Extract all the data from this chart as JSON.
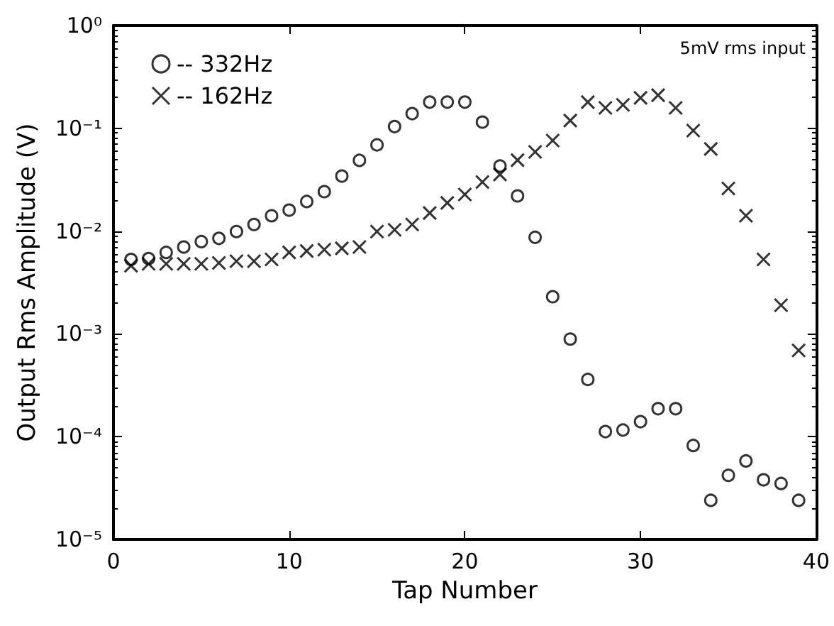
{
  "chart_data": {
    "type": "scatter",
    "xlabel": "Tap Number",
    "ylabel": "Output Rms Amplitude (V)",
    "log": "y",
    "grid": false,
    "legend": "top left",
    "xlim": [
      0,
      40
    ],
    "xticks": [
      0,
      10,
      20,
      30,
      40
    ],
    "ylim": [
      1e-05,
      1
    ],
    "yticks": [
      {
        "value": 1e-05,
        "label": "10⁻⁵"
      },
      {
        "value": 0.0001,
        "label": "10⁻⁴"
      },
      {
        "value": 0.001,
        "label": "10⁻³"
      },
      {
        "value": 0.01,
        "label": "10⁻²"
      },
      {
        "value": 0.1,
        "label": "10⁻¹"
      },
      {
        "value": 1,
        "label": "10⁰"
      }
    ],
    "annotations": [
      "5mV rms input"
    ],
    "series": [
      {
        "name": "-- 332Hz",
        "color": "#000000",
        "marker": "circle",
        "x": [
          1,
          2,
          3,
          4,
          5,
          6,
          7,
          8,
          9,
          10,
          11,
          12,
          13,
          14,
          15,
          16,
          17,
          18,
          19,
          20,
          21,
          22,
          23,
          24,
          25,
          26,
          27,
          28,
          29,
          30,
          31,
          32,
          33,
          34,
          35,
          36,
          37,
          38,
          39
        ],
        "values": [
          0.0053,
          0.0054,
          0.0062,
          0.007,
          0.0079,
          0.0085,
          0.0099,
          0.0116,
          0.0141,
          0.016,
          0.0194,
          0.0242,
          0.0343,
          0.0488,
          0.069,
          0.104,
          0.139,
          0.18,
          0.18,
          0.18,
          0.115,
          0.043,
          0.022,
          0.0087,
          0.0023,
          0.00089,
          0.00036,
          0.000112,
          0.000116,
          0.00014,
          0.000187,
          0.000187,
          8.2e-05,
          2.4e-05,
          4.2e-05,
          5.8e-05,
          3.8e-05,
          3.5e-05,
          2.4e-05
        ]
      },
      {
        "name": "-- 162Hz",
        "color": "#000000",
        "marker": "cross",
        "x": [
          1,
          2,
          3,
          4,
          5,
          6,
          7,
          8,
          9,
          10,
          11,
          12,
          13,
          14,
          15,
          16,
          17,
          18,
          19,
          20,
          21,
          22,
          23,
          24,
          25,
          26,
          27,
          28,
          29,
          30,
          31,
          32,
          33,
          34,
          35,
          36,
          37,
          38,
          39
        ],
        "values": [
          0.0046,
          0.0048,
          0.0048,
          0.0048,
          0.0048,
          0.0049,
          0.0051,
          0.0051,
          0.0053,
          0.0062,
          0.0064,
          0.0066,
          0.0068,
          0.007,
          0.0099,
          0.0103,
          0.0116,
          0.015,
          0.0188,
          0.0227,
          0.03,
          0.0355,
          0.049,
          0.059,
          0.076,
          0.119,
          0.18,
          0.158,
          0.169,
          0.198,
          0.21,
          0.158,
          0.095,
          0.063,
          0.026,
          0.0141,
          0.0053,
          0.0019,
          0.00069
        ]
      }
    ]
  }
}
